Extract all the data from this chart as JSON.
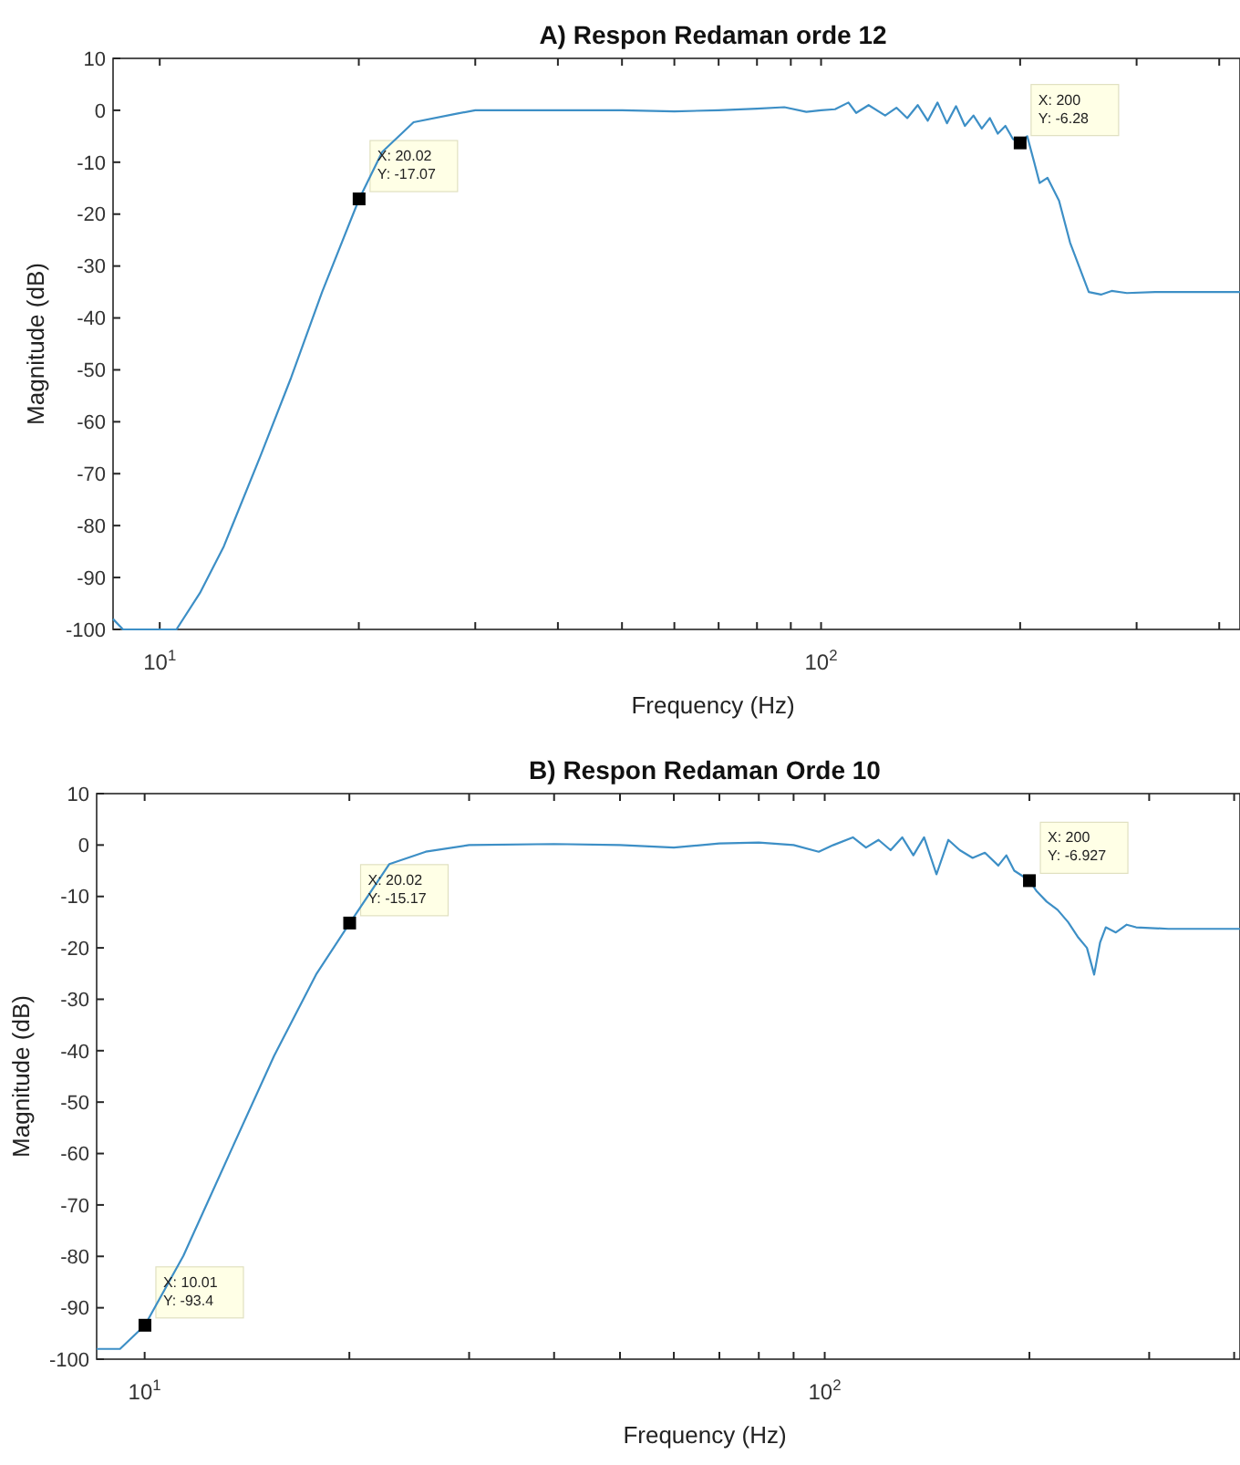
{
  "chart_data": [
    {
      "type": "line",
      "title": "A) Respon Redaman orde 12",
      "xlabel": "Frequency (Hz)",
      "ylabel": "Magnitude (dB)",
      "log": "x",
      "grid": false,
      "xlim": [
        8.5,
        430
      ],
      "ylim": [
        -100,
        10
      ],
      "xticks": [
        {
          "value": 10,
          "label": "10$^{1}$"
        },
        {
          "value": 20,
          "label": null
        },
        {
          "value": 30,
          "label": null
        },
        {
          "value": 40,
          "label": null
        },
        {
          "value": 50,
          "label": null
        },
        {
          "value": 60,
          "label": null
        },
        {
          "value": 70,
          "label": null
        },
        {
          "value": 80,
          "label": null
        },
        {
          "value": 90,
          "label": null
        },
        {
          "value": 100,
          "label": "10$^{2}$"
        },
        {
          "value": 200,
          "label": null
        },
        {
          "value": 300,
          "label": null
        },
        {
          "value": 400,
          "label": null
        }
      ],
      "yticks": [
        -100,
        -90,
        -80,
        -70,
        -60,
        -50,
        -40,
        -30,
        -20,
        -10,
        0,
        10
      ],
      "x": [
        8.5,
        8.8,
        10.6,
        11.5,
        12.5,
        14.2,
        15.8,
        17.6,
        20.02,
        21.7,
        24.2,
        28,
        30,
        40,
        50,
        60,
        70,
        80,
        88,
        95,
        100,
        105,
        110,
        113,
        118,
        125,
        130,
        135,
        140,
        145,
        150,
        155,
        160,
        165,
        170,
        175,
        180,
        185,
        190,
        195,
        200,
        205,
        210,
        214,
        220,
        229,
        238,
        254,
        265,
        275,
        290,
        320,
        360,
        400,
        430
      ],
      "series": [
        {
          "color": "#3d8fc6",
          "values": [
            -98,
            -100,
            -100,
            -93,
            -84,
            -66.6,
            -51.5,
            -35,
            -17.1,
            -8,
            -2.3,
            -0.7,
            0,
            0,
            0,
            -0.2,
            0,
            0.3,
            0.6,
            -0.3,
            0,
            0.2,
            1.5,
            -0.5,
            1,
            -1,
            0.5,
            -1.5,
            1,
            -2,
            1.5,
            -2.5,
            0.8,
            -3,
            -1,
            -3.5,
            -1.5,
            -4.5,
            -3,
            -5.5,
            -6.3,
            -5,
            -10,
            -14,
            -13,
            -17.4,
            -25.5,
            -35,
            -35.5,
            -34.8,
            -35.2,
            -35,
            -35,
            -35,
            -35
          ]
        }
      ],
      "annotations": [
        {
          "text": "X: 20.02\nY: -17.07",
          "x": 20.02,
          "y": -17.07
        },
        {
          "text": "X: 200\nY: -6.28",
          "x": 200,
          "y": -6.28
        }
      ]
    },
    {
      "type": "line",
      "title": "B) Respon Redaman Orde 10",
      "xlabel": "Frequency (Hz)",
      "ylabel": "Magnitude (dB)",
      "log": "x",
      "grid": false,
      "xlim": [
        8.5,
        408
      ],
      "ylim": [
        -100,
        10
      ],
      "xticks": [
        {
          "value": 10,
          "label": "10$^{1}$"
        },
        {
          "value": 20,
          "label": null
        },
        {
          "value": 30,
          "label": null
        },
        {
          "value": 40,
          "label": null
        },
        {
          "value": 50,
          "label": null
        },
        {
          "value": 60,
          "label": null
        },
        {
          "value": 70,
          "label": null
        },
        {
          "value": 80,
          "label": null
        },
        {
          "value": 90,
          "label": null
        },
        {
          "value": 100,
          "label": "10$^{2}$"
        },
        {
          "value": 200,
          "label": null
        },
        {
          "value": 300,
          "label": null
        },
        {
          "value": 400,
          "label": null
        }
      ],
      "yticks": [
        -100,
        -90,
        -80,
        -70,
        -60,
        -50,
        -40,
        -30,
        -20,
        -10,
        0,
        10
      ],
      "x": [
        8.5,
        9.2,
        10.01,
        11.4,
        13.4,
        15.5,
        17.9,
        20.02,
        22.9,
        25.9,
        30,
        40,
        50,
        60,
        70,
        80,
        90,
        98,
        103,
        110,
        115,
        120,
        125,
        130,
        135,
        140,
        146,
        152,
        158,
        165,
        172,
        180,
        185,
        190,
        200,
        205,
        212,
        220,
        228,
        236,
        243,
        249,
        254,
        259,
        268,
        278,
        287,
        320,
        360,
        408
      ],
      "series": [
        {
          "color": "#3d8fc6",
          "values": [
            -98,
            -98,
            -93.4,
            -79.9,
            -59.4,
            -41,
            -25,
            -15.2,
            -3.7,
            -1.3,
            0,
            0.2,
            0,
            -0.5,
            0.3,
            0.5,
            0,
            -1.3,
            0,
            1.5,
            -0.5,
            1,
            -1,
            1.5,
            -2,
            1.5,
            -5.7,
            1,
            -1,
            -2.5,
            -1.5,
            -4,
            -2,
            -5,
            -6.9,
            -9,
            -11,
            -12.6,
            -15,
            -18,
            -20,
            -25.2,
            -19,
            -16,
            -17,
            -15.5,
            -16,
            -16.3,
            -16.3,
            -16.3
          ]
        }
      ],
      "annotations": [
        {
          "text": "X: 10.01\nY: -93.4",
          "x": 10.01,
          "y": -93.4
        },
        {
          "text": "X: 20.02\nY: -15.17",
          "x": 20.02,
          "y": -15.17
        },
        {
          "text": "X: 200\nY: -6.927",
          "x": 200,
          "y": -6.927
        }
      ]
    }
  ]
}
